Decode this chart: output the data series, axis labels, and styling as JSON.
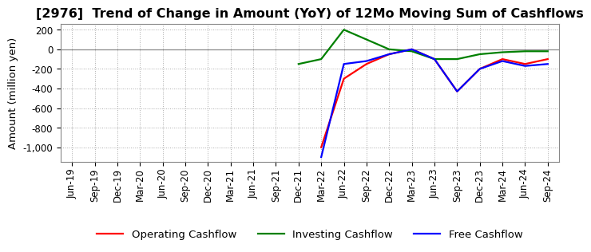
{
  "title": "[2976]  Trend of Change in Amount (YoY) of 12Mo Moving Sum of Cashflows",
  "ylabel": "Amount (million yen)",
  "title_fontsize": 11.5,
  "label_fontsize": 9.5,
  "tick_fontsize": 8.5,
  "background_color": "#ffffff",
  "grid_color": "#aaaaaa",
  "x_labels": [
    "Jun-19",
    "Sep-19",
    "Dec-19",
    "Mar-20",
    "Jun-20",
    "Sep-20",
    "Dec-20",
    "Mar-21",
    "Jun-21",
    "Sep-21",
    "Dec-21",
    "Mar-22",
    "Jun-22",
    "Sep-22",
    "Dec-22",
    "Mar-23",
    "Jun-23",
    "Sep-23",
    "Dec-23",
    "Mar-24",
    "Jun-24",
    "Sep-24"
  ],
  "operating_cashflow": [
    null,
    null,
    null,
    null,
    null,
    null,
    null,
    null,
    null,
    null,
    null,
    -1000,
    -300,
    -150,
    -50,
    0,
    -100,
    -430,
    -200,
    -100,
    -150,
    -100
  ],
  "investing_cashflow": [
    null,
    null,
    null,
    null,
    null,
    null,
    null,
    null,
    null,
    null,
    -150,
    -100,
    200,
    100,
    0,
    -20,
    -100,
    -100,
    -50,
    -30,
    -20,
    -20
  ],
  "free_cashflow": [
    null,
    null,
    null,
    null,
    null,
    null,
    null,
    null,
    null,
    null,
    null,
    -1100,
    -150,
    -120,
    -50,
    0,
    -100,
    -430,
    -200,
    -120,
    -170,
    -150
  ],
  "operating_color": "#ff0000",
  "investing_color": "#008000",
  "free_color": "#0000ff",
  "yticks": [
    200,
    0,
    -200,
    -400,
    -600,
    -800,
    -1000
  ],
  "ylim": [
    -1150,
    260
  ],
  "legend_labels": [
    "Operating Cashflow",
    "Investing Cashflow",
    "Free Cashflow"
  ]
}
